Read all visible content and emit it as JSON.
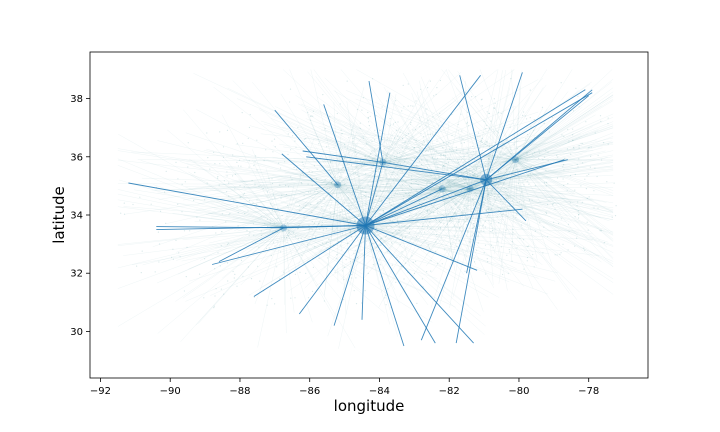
{
  "chart_data": {
    "type": "scatter",
    "title": "",
    "xlabel": "longitude",
    "ylabel": "latitude",
    "xlim": [
      -92.3,
      -76.3
    ],
    "ylim": [
      28.4,
      39.6
    ],
    "xticks": [
      -92,
      -90,
      -88,
      -86,
      -84,
      -82,
      -80,
      -78
    ],
    "yticks": [
      30,
      32,
      34,
      36,
      38
    ],
    "xtick_labels": [
      "−92",
      "−90",
      "−88",
      "−86",
      "−84",
      "−82",
      "−80",
      "−78"
    ],
    "ytick_labels": [
      "30",
      "32",
      "34",
      "36",
      "38"
    ],
    "grid": false,
    "legend": "none",
    "colors": {
      "tracks": "#1f77b4",
      "haze": "#5fa3a8",
      "frame": "#000000"
    },
    "hubs": [
      {
        "x": -84.4,
        "y": 33.64
      },
      {
        "x": -80.94,
        "y": 35.21
      },
      {
        "x": -86.75,
        "y": 33.56
      },
      {
        "x": -83.9,
        "y": 35.81
      },
      {
        "x": -81.4,
        "y": 34.9
      },
      {
        "x": -85.2,
        "y": 35.04
      },
      {
        "x": -82.2,
        "y": 34.9
      },
      {
        "x": -80.1,
        "y": 35.9
      }
    ],
    "routes": [
      {
        "x1": -84.4,
        "y1": 33.64,
        "x2": -91.2,
        "y2": 35.1
      },
      {
        "x1": -84.4,
        "y1": 33.64,
        "x2": -88.8,
        "y2": 32.3
      },
      {
        "x1": -84.4,
        "y1": 33.64,
        "x2": -86.8,
        "y2": 36.1
      },
      {
        "x1": -84.4,
        "y1": 33.64,
        "x2": -85.6,
        "y2": 37.8
      },
      {
        "x1": -84.4,
        "y1": 33.64,
        "x2": -83.7,
        "y2": 38.2
      },
      {
        "x1": -84.4,
        "y1": 33.64,
        "x2": -81.1,
        "y2": 38.8
      },
      {
        "x1": -84.4,
        "y1": 33.64,
        "x2": -78.1,
        "y2": 38.3
      },
      {
        "x1": -84.4,
        "y1": 33.64,
        "x2": -77.9,
        "y2": 38.2
      },
      {
        "x1": -84.4,
        "y1": 33.64,
        "x2": -78.7,
        "y2": 35.9
      },
      {
        "x1": -84.4,
        "y1": 33.64,
        "x2": -79.9,
        "y2": 34.2
      },
      {
        "x1": -84.4,
        "y1": 33.64,
        "x2": -81.2,
        "y2": 32.1
      },
      {
        "x1": -84.4,
        "y1": 33.64,
        "x2": -81.3,
        "y2": 29.6
      },
      {
        "x1": -84.4,
        "y1": 33.64,
        "x2": -82.4,
        "y2": 29.6
      },
      {
        "x1": -84.4,
        "y1": 33.64,
        "x2": -83.3,
        "y2": 29.5
      },
      {
        "x1": -84.4,
        "y1": 33.64,
        "x2": -84.5,
        "y2": 30.4
      },
      {
        "x1": -84.4,
        "y1": 33.64,
        "x2": -85.3,
        "y2": 30.2
      },
      {
        "x1": -84.4,
        "y1": 33.64,
        "x2": -86.3,
        "y2": 30.6
      },
      {
        "x1": -84.4,
        "y1": 33.64,
        "x2": -87.6,
        "y2": 31.2
      },
      {
        "x1": -84.4,
        "y1": 33.64,
        "x2": -90.4,
        "y2": 33.5
      },
      {
        "x1": -84.4,
        "y1": 33.64,
        "x2": -80.94,
        "y2": 35.21
      },
      {
        "x1": -84.4,
        "y1": 33.64,
        "x2": -86.75,
        "y2": 33.56
      },
      {
        "x1": -84.4,
        "y1": 33.64,
        "x2": -83.9,
        "y2": 35.81
      },
      {
        "x1": -84.4,
        "y1": 33.64,
        "x2": -82.2,
        "y2": 34.9
      },
      {
        "x1": -80.94,
        "y1": 35.21,
        "x2": -77.9,
        "y2": 38.3
      },
      {
        "x1": -80.94,
        "y1": 35.21,
        "x2": -78.0,
        "y2": 38.1
      },
      {
        "x1": -80.94,
        "y1": 35.21,
        "x2": -79.9,
        "y2": 38.9
      },
      {
        "x1": -80.94,
        "y1": 35.21,
        "x2": -81.7,
        "y2": 38.8
      },
      {
        "x1": -80.94,
        "y1": 35.21,
        "x2": -78.6,
        "y2": 35.9
      },
      {
        "x1": -80.94,
        "y1": 35.21,
        "x2": -79.8,
        "y2": 33.8
      },
      {
        "x1": -80.94,
        "y1": 35.21,
        "x2": -81.5,
        "y2": 32.0
      },
      {
        "x1": -80.94,
        "y1": 35.21,
        "x2": -82.8,
        "y2": 29.7
      },
      {
        "x1": -80.94,
        "y1": 35.21,
        "x2": -81.8,
        "y2": 29.6
      },
      {
        "x1": -80.94,
        "y1": 35.21,
        "x2": -86.1,
        "y2": 36.0
      },
      {
        "x1": -80.94,
        "y1": 35.21,
        "x2": -83.9,
        "y2": 35.81
      },
      {
        "x1": -83.9,
        "y1": 35.81,
        "x2": -84.3,
        "y2": 38.6
      },
      {
        "x1": -83.9,
        "y1": 35.81,
        "x2": -86.2,
        "y2": 36.2
      },
      {
        "x1": -86.75,
        "y1": 33.56,
        "x2": -90.4,
        "y2": 33.6
      },
      {
        "x1": -86.75,
        "y1": 33.56,
        "x2": -88.6,
        "y2": 32.4
      },
      {
        "x1": -85.2,
        "y1": 35.04,
        "x2": -87.0,
        "y2": 37.6
      }
    ]
  }
}
